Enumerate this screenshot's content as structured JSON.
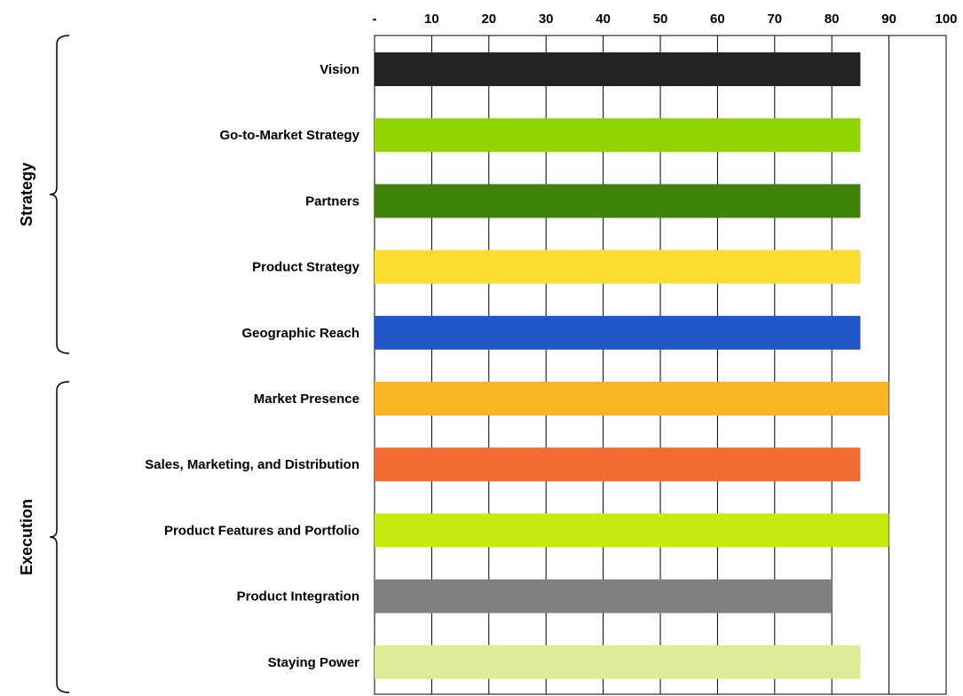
{
  "chart_data": {
    "type": "bar",
    "orientation": "horizontal",
    "x_ticks": [
      "-",
      "10",
      "20",
      "30",
      "40",
      "50",
      "60",
      "70",
      "80",
      "90",
      "100"
    ],
    "xlim": [
      0,
      100
    ],
    "grid": true,
    "x_axis_position": "top",
    "categories": [
      "Vision",
      "Go-to-Market Strategy",
      "Partners",
      "Product Strategy",
      "Geographic Reach ",
      "Market Presence",
      "Sales, Marketing, and Distribution",
      "Product Features and Portfolio",
      "Product Integration",
      "Staying Power"
    ],
    "values": [
      85,
      85,
      85,
      85,
      85,
      90,
      85,
      90,
      80,
      85
    ],
    "colors": [
      "#222222",
      "#92d400",
      "#3f830b",
      "#fcdc2f",
      "#1f57c9",
      "#f8b623",
      "#f26b33",
      "#c6ea0d",
      "#808080",
      "#dfeb94"
    ],
    "groups": [
      {
        "label": "Strategy",
        "start": 0,
        "end": 4
      },
      {
        "label": "Execution",
        "start": 5,
        "end": 9
      }
    ]
  }
}
